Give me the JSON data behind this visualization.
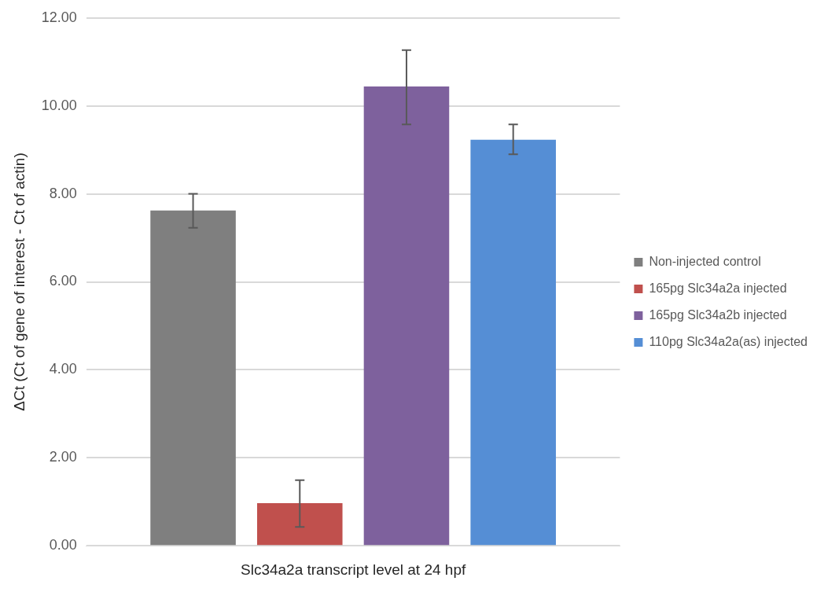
{
  "chart_data": {
    "type": "bar",
    "categories": [
      "Slc34a2a transcript level at 24 hpf"
    ],
    "ylabel": "ΔCt (Ct of gene of interest - Ct of actin)",
    "series": [
      {
        "name": "Non-injected control",
        "color": "#7f7f7f",
        "values": [
          7.62
        ],
        "errors": [
          [
            7.23,
            8.0
          ]
        ]
      },
      {
        "name": "165pg Slc34a2a injected",
        "color": "#c0504d",
        "values": [
          0.97
        ],
        "errors": [
          [
            0.43,
            1.49
          ]
        ]
      },
      {
        "name": "165pg Slc34a2b injected",
        "color": "#7e619d",
        "values": [
          10.44
        ],
        "errors": [
          [
            9.58,
            11.27
          ]
        ]
      },
      {
        "name": "110pg Slc34a2a(as) injected",
        "color": "#558ed5",
        "values": [
          9.23
        ],
        "errors": [
          [
            8.9,
            9.58
          ]
        ]
      }
    ],
    "ylim": [
      0,
      12
    ],
    "yticks": [
      {
        "value": 0,
        "label": "0.00"
      },
      {
        "value": 2,
        "label": "2.00"
      },
      {
        "value": 4,
        "label": "4.00"
      },
      {
        "value": 6,
        "label": "6.00"
      },
      {
        "value": 8,
        "label": "8.00"
      },
      {
        "value": 10,
        "label": "10.00"
      },
      {
        "value": 12,
        "label": "12.00"
      }
    ],
    "grid": "y",
    "legend": "right"
  }
}
